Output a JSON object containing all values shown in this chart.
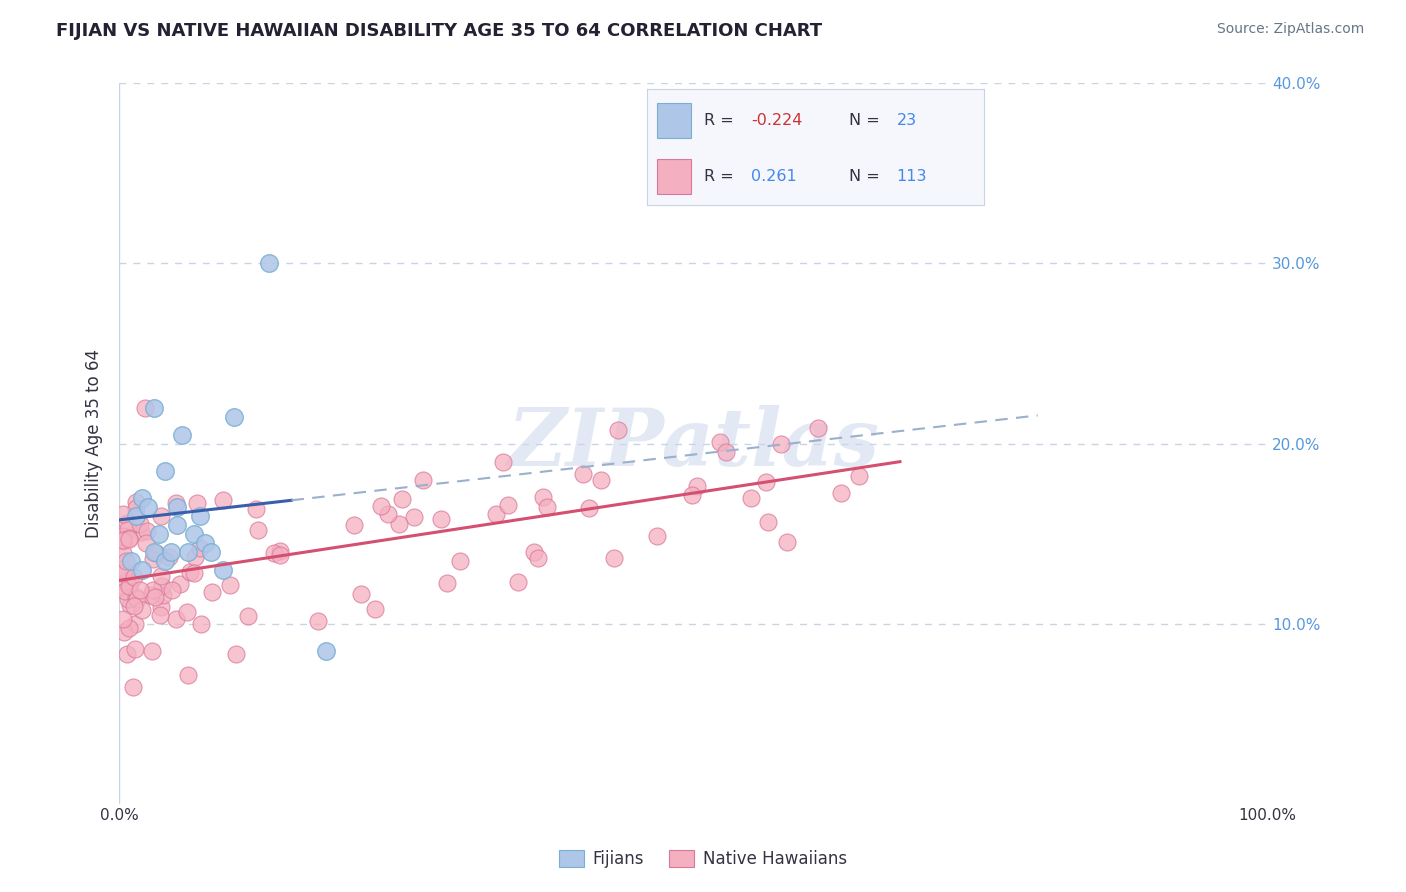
{
  "title": "FIJIAN VS NATIVE HAWAIIAN DISABILITY AGE 35 TO 64 CORRELATION CHART",
  "source": "Source: ZipAtlas.com",
  "ylabel": "Disability Age 35 to 64",
  "xlim": [
    0,
    100
  ],
  "ylim": [
    0,
    40
  ],
  "fijian_color": "#aec6e8",
  "fijian_edge": "#7aafd4",
  "fijian_line_color": "#3a5faa",
  "native_hawaiian_color": "#f4afc0",
  "native_hawaiian_edge": "#d8789a",
  "native_hawaiian_line_color": "#d45070",
  "dashed_line_color": "#9ab0cc",
  "watermark_color": "#cdd8ec",
  "R_fijian": -0.224,
  "N_fijian": 23,
  "R_native": 0.261,
  "N_native": 113,
  "background_color": "#ffffff",
  "grid_color": "#c8d4e4",
  "legend_bg": "#f5f7fc",
  "legend_border": "#c8d4e4",
  "title_color": "#222233",
  "source_color": "#667788",
  "axis_label_color": "#333344",
  "right_tick_color": "#5599dd",
  "fijian_legend_label": "Fijians",
  "native_legend_label": "Native Hawaiians"
}
